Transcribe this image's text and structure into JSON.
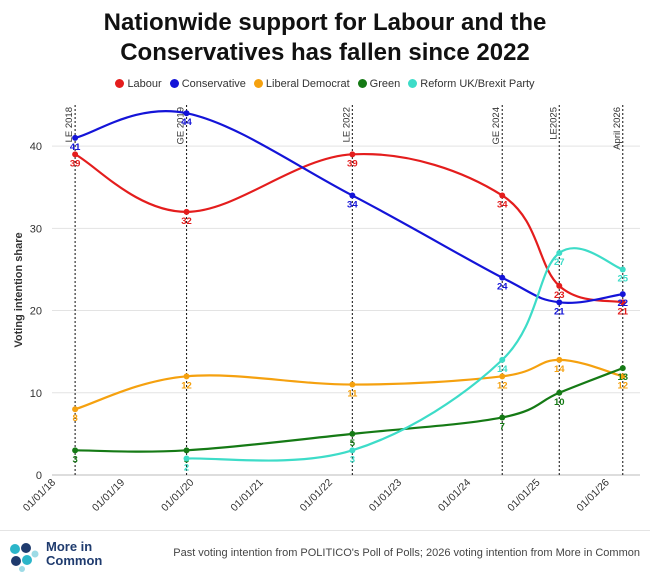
{
  "title_line1": "Nationwide support for Labour and the",
  "title_line2": "Conservatives has fallen since 2022",
  "source": "Past voting intention from POLITICO's Poll of Polls; 2026 voting intention from More in Common",
  "logo": {
    "line1": "More in",
    "line2": "Common"
  },
  "colors": {
    "Labour": "#e41d1d",
    "Conservative": "#1414d8",
    "Liberal Democrat": "#f5a10f",
    "Green": "#157a15",
    "Reform UK/Brexit Party": "#3ddcc8"
  },
  "chart_data": {
    "type": "line",
    "title": "Nationwide support for Labour and the Conservatives has fallen since 2022",
    "xlabel": "",
    "ylabel": "Voting intention share",
    "x_axis": "date",
    "xlim": [
      "2018-01-01",
      "2026-07-01"
    ],
    "ylim": [
      0,
      45
    ],
    "yticks": [
      0,
      10,
      20,
      30,
      40
    ],
    "xticks": [
      "01/01/18",
      "01/01/19",
      "01/01/20",
      "01/01/21",
      "01/01/22",
      "01/01/23",
      "01/01/24",
      "01/01/25",
      "01/01/26"
    ],
    "xtick_dates": [
      "2018-01-01",
      "2019-01-01",
      "2020-01-01",
      "2021-01-01",
      "2022-01-01",
      "2023-01-01",
      "2024-01-01",
      "2025-01-01",
      "2026-01-01"
    ],
    "grid": "horizontal",
    "legend_position": "top",
    "events": [
      {
        "label": "LE 2018",
        "date": "2018-05-03"
      },
      {
        "label": "GE 2019",
        "date": "2019-12-12"
      },
      {
        "label": "LE 2022",
        "date": "2022-05-05"
      },
      {
        "label": "GE 2024",
        "date": "2024-07-04"
      },
      {
        "label": "LE2025",
        "date": "2025-05-01"
      },
      {
        "label": "April 2026",
        "date": "2026-04-01"
      }
    ],
    "series": [
      {
        "name": "Labour",
        "dates": [
          "2018-05-03",
          "2019-12-12",
          "2022-05-05",
          "2024-07-04",
          "2025-05-01",
          "2026-04-01"
        ],
        "values": [
          39,
          32,
          39,
          34,
          23,
          21
        ],
        "labels": [
          "39",
          "32",
          "39",
          "34",
          "23",
          "21"
        ]
      },
      {
        "name": "Conservative",
        "dates": [
          "2018-05-03",
          "2019-12-12",
          "2022-05-05",
          "2024-07-04",
          "2025-05-01",
          "2026-04-01"
        ],
        "values": [
          41,
          44,
          34,
          24,
          21,
          22
        ],
        "labels": [
          "41",
          "44",
          "34",
          "24",
          "21",
          "22"
        ]
      },
      {
        "name": "Liberal Democrat",
        "dates": [
          "2018-05-03",
          "2019-12-12",
          "2022-05-05",
          "2024-07-04",
          "2025-05-01",
          "2026-04-01"
        ],
        "values": [
          8,
          12,
          11,
          12,
          14,
          12
        ],
        "labels": [
          "8",
          "12",
          "11",
          "12",
          "14",
          "12"
        ]
      },
      {
        "name": "Green",
        "dates": [
          "2018-05-03",
          "2019-12-12",
          "2022-05-05",
          "2024-07-04",
          "2025-05-01",
          "2026-04-01"
        ],
        "values": [
          3,
          3,
          5,
          7,
          10,
          13
        ],
        "labels": [
          "3",
          "3",
          "5",
          "7",
          "10",
          "13"
        ]
      },
      {
        "name": "Reform UK/Brexit Party",
        "dates": [
          "2019-12-12",
          "2022-05-05",
          "2024-07-04",
          "2025-05-01",
          "2026-04-01"
        ],
        "values": [
          2,
          3,
          14,
          27,
          25
        ],
        "labels": [
          "2",
          "3",
          "14",
          "27",
          "25"
        ]
      }
    ]
  }
}
